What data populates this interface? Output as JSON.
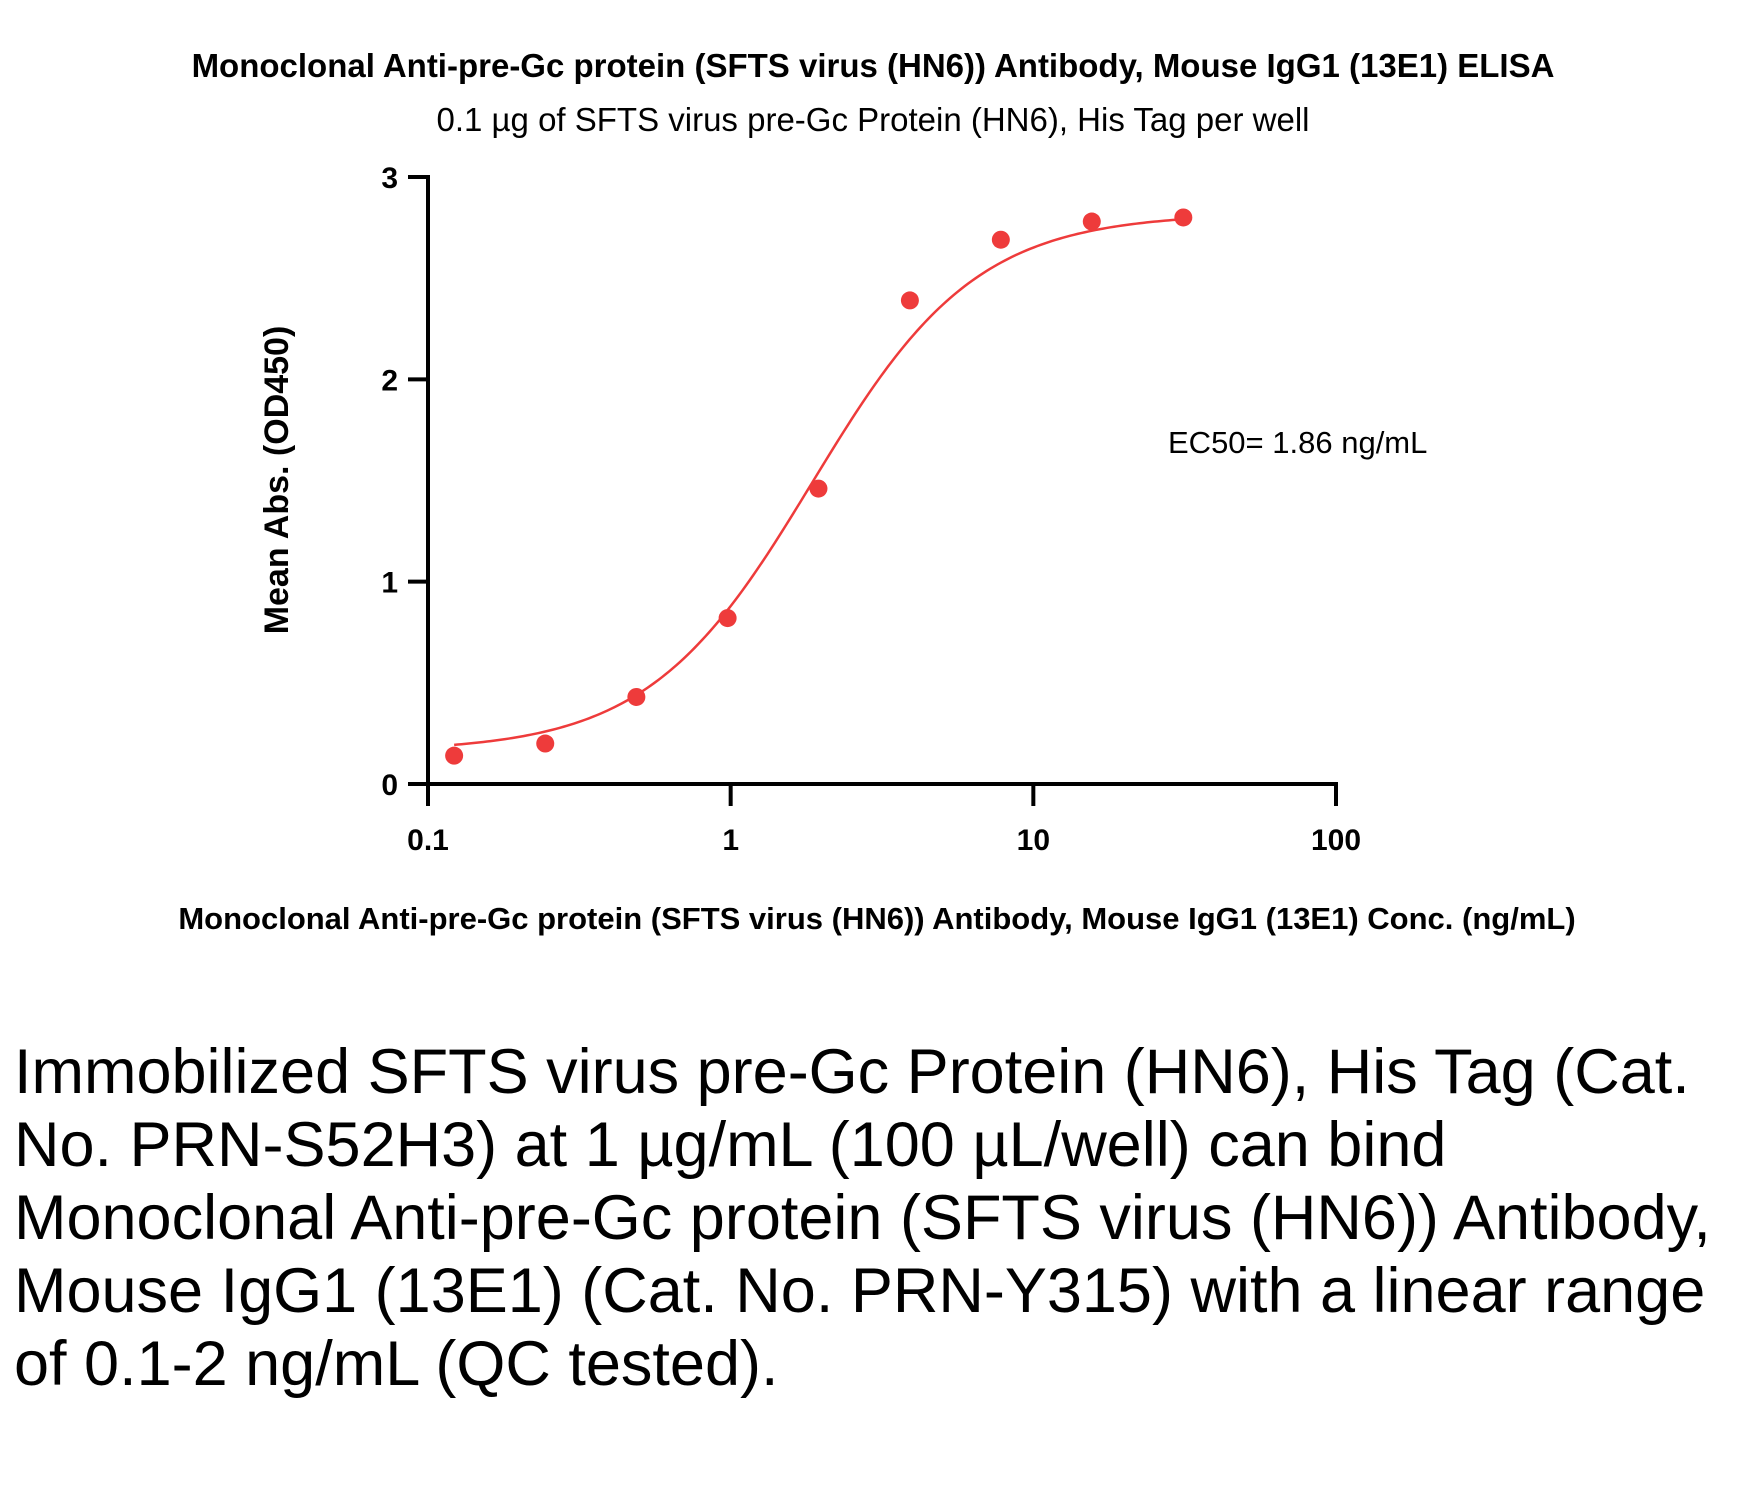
{
  "chart_data": {
    "type": "scatter",
    "title": "Monoclonal Anti-pre-Gc protein (SFTS virus (HN6)) Antibody, Mouse IgG1 (13E1) ELISA",
    "subtitle": "0.1 µg of SFTS virus pre-Gc Protein (HN6), His Tag per well",
    "xlabel": "Monoclonal Anti-pre-Gc protein (SFTS virus (HN6)) Antibody, Mouse IgG1 (13E1) Conc. (ng/mL)",
    "ylabel": "Mean Abs. (OD450)",
    "x_scale": "log",
    "xlim": [
      0.1,
      100
    ],
    "ylim": [
      0,
      3
    ],
    "x_ticks": [
      "0.1",
      "1",
      "10",
      "100"
    ],
    "y_ticks": [
      "0",
      "1",
      "2",
      "3"
    ],
    "grid": false,
    "annotation": "EC50= 1.86 ng/mL",
    "series": [
      {
        "x": [
          0.122,
          0.244,
          0.488,
          0.977,
          1.95,
          3.91,
          7.81,
          15.6,
          31.3
        ],
        "y": [
          0.14,
          0.2,
          0.43,
          0.82,
          1.46,
          2.39,
          2.69,
          2.78,
          2.8
        ],
        "fit": "4PL",
        "color": "#ee3b3b"
      }
    ]
  },
  "caption": "Immobilized SFTS virus pre-Gc Protein (HN6), His Tag (Cat. No. PRN-S52H3) at 1 µg/mL (100 µL/well) can bind Monoclonal Anti-pre-Gc protein (SFTS virus (HN6)) Antibody, Mouse IgG1 (13E1) (Cat. No. PRN-Y315) with a linear range of 0.1-2 ng/mL (QC tested)."
}
